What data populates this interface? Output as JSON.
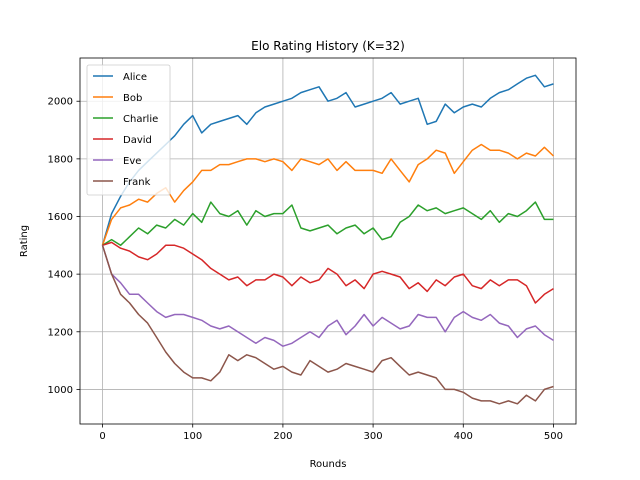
{
  "chart_data": {
    "type": "line",
    "title": "Elo Rating History (K=32)",
    "xlabel": "Rounds",
    "ylabel": "Rating",
    "xlim": [
      -25,
      525
    ],
    "ylim": [
      880,
      2150
    ],
    "xticks": [
      0,
      100,
      200,
      300,
      400,
      500
    ],
    "yticks": [
      1000,
      1200,
      1400,
      1600,
      1800,
      2000
    ],
    "grid": true,
    "legend": "top-left",
    "series": [
      {
        "name": "Alice",
        "color": "#1f77b4",
        "x": [
          0,
          10,
          20,
          30,
          40,
          50,
          60,
          70,
          80,
          90,
          100,
          110,
          120,
          130,
          140,
          150,
          160,
          170,
          180,
          190,
          200,
          210,
          220,
          230,
          240,
          250,
          260,
          270,
          280,
          290,
          300,
          310,
          320,
          330,
          340,
          350,
          360,
          370,
          380,
          390,
          400,
          410,
          420,
          430,
          440,
          450,
          460,
          470,
          480,
          490,
          500
        ],
        "y": [
          1500,
          1610,
          1670,
          1720,
          1760,
          1790,
          1820,
          1850,
          1880,
          1920,
          1950,
          1890,
          1920,
          1930,
          1940,
          1950,
          1920,
          1960,
          1980,
          1990,
          2000,
          2010,
          2030,
          2040,
          2050,
          2000,
          2010,
          2030,
          1980,
          1990,
          2000,
          2010,
          2030,
          1990,
          2000,
          2010,
          1920,
          1930,
          1990,
          1960,
          1980,
          1990,
          1980,
          2010,
          2030,
          2040,
          2060,
          2080,
          2090,
          2050,
          2060
        ]
      },
      {
        "name": "Bob",
        "color": "#ff7f0e",
        "x": [
          0,
          10,
          20,
          30,
          40,
          50,
          60,
          70,
          80,
          90,
          100,
          110,
          120,
          130,
          140,
          150,
          160,
          170,
          180,
          190,
          200,
          210,
          220,
          230,
          240,
          250,
          260,
          270,
          280,
          290,
          300,
          310,
          320,
          330,
          340,
          350,
          360,
          370,
          380,
          390,
          400,
          410,
          420,
          430,
          440,
          450,
          460,
          470,
          480,
          490,
          500
        ],
        "y": [
          1500,
          1590,
          1630,
          1640,
          1660,
          1650,
          1680,
          1700,
          1650,
          1690,
          1720,
          1760,
          1760,
          1780,
          1780,
          1790,
          1800,
          1800,
          1790,
          1800,
          1790,
          1760,
          1800,
          1790,
          1780,
          1800,
          1760,
          1790,
          1760,
          1760,
          1760,
          1750,
          1800,
          1760,
          1720,
          1780,
          1800,
          1830,
          1820,
          1750,
          1790,
          1830,
          1850,
          1830,
          1830,
          1820,
          1800,
          1820,
          1810,
          1840,
          1810
        ]
      },
      {
        "name": "Charlie",
        "color": "#2ca02c",
        "x": [
          0,
          10,
          20,
          30,
          40,
          50,
          60,
          70,
          80,
          90,
          100,
          110,
          120,
          130,
          140,
          150,
          160,
          170,
          180,
          190,
          200,
          210,
          220,
          230,
          240,
          250,
          260,
          270,
          280,
          290,
          300,
          310,
          320,
          330,
          340,
          350,
          360,
          370,
          380,
          390,
          400,
          410,
          420,
          430,
          440,
          450,
          460,
          470,
          480,
          490,
          500
        ],
        "y": [
          1500,
          1520,
          1500,
          1530,
          1560,
          1540,
          1570,
          1560,
          1590,
          1570,
          1610,
          1580,
          1650,
          1610,
          1600,
          1620,
          1570,
          1620,
          1600,
          1610,
          1610,
          1640,
          1560,
          1550,
          1560,
          1570,
          1540,
          1560,
          1570,
          1540,
          1560,
          1520,
          1530,
          1580,
          1600,
          1640,
          1620,
          1630,
          1610,
          1620,
          1630,
          1610,
          1590,
          1620,
          1580,
          1610,
          1600,
          1620,
          1650,
          1590,
          1590
        ]
      },
      {
        "name": "David",
        "color": "#d62728",
        "x": [
          0,
          10,
          20,
          30,
          40,
          50,
          60,
          70,
          80,
          90,
          100,
          110,
          120,
          130,
          140,
          150,
          160,
          170,
          180,
          190,
          200,
          210,
          220,
          230,
          240,
          250,
          260,
          270,
          280,
          290,
          300,
          310,
          320,
          330,
          340,
          350,
          360,
          370,
          380,
          390,
          400,
          410,
          420,
          430,
          440,
          450,
          460,
          470,
          480,
          490,
          500
        ],
        "y": [
          1500,
          1510,
          1490,
          1480,
          1460,
          1450,
          1470,
          1500,
          1500,
          1490,
          1470,
          1450,
          1420,
          1400,
          1380,
          1390,
          1360,
          1380,
          1380,
          1400,
          1390,
          1360,
          1390,
          1370,
          1380,
          1420,
          1400,
          1360,
          1380,
          1350,
          1400,
          1410,
          1400,
          1390,
          1350,
          1370,
          1340,
          1380,
          1360,
          1390,
          1400,
          1360,
          1350,
          1380,
          1360,
          1380,
          1380,
          1360,
          1300,
          1330,
          1350
        ]
      },
      {
        "name": "Eve",
        "color": "#9467bd",
        "x": [
          0,
          10,
          20,
          30,
          40,
          50,
          60,
          70,
          80,
          90,
          100,
          110,
          120,
          130,
          140,
          150,
          160,
          170,
          180,
          190,
          200,
          210,
          220,
          230,
          240,
          250,
          260,
          270,
          280,
          290,
          300,
          310,
          320,
          330,
          340,
          350,
          360,
          370,
          380,
          390,
          400,
          410,
          420,
          430,
          440,
          450,
          460,
          470,
          480,
          490,
          500
        ],
        "y": [
          1500,
          1400,
          1370,
          1330,
          1330,
          1300,
          1270,
          1250,
          1260,
          1260,
          1250,
          1240,
          1220,
          1210,
          1220,
          1200,
          1180,
          1160,
          1180,
          1170,
          1150,
          1160,
          1180,
          1200,
          1180,
          1220,
          1240,
          1190,
          1220,
          1260,
          1220,
          1250,
          1230,
          1210,
          1220,
          1260,
          1250,
          1250,
          1200,
          1250,
          1270,
          1250,
          1240,
          1260,
          1230,
          1220,
          1180,
          1210,
          1220,
          1190,
          1170
        ]
      },
      {
        "name": "Frank",
        "color": "#8c564b",
        "x": [
          0,
          10,
          20,
          30,
          40,
          50,
          60,
          70,
          80,
          90,
          100,
          110,
          120,
          130,
          140,
          150,
          160,
          170,
          180,
          190,
          200,
          210,
          220,
          230,
          240,
          250,
          260,
          270,
          280,
          290,
          300,
          310,
          320,
          330,
          340,
          350,
          360,
          370,
          380,
          390,
          400,
          410,
          420,
          430,
          440,
          450,
          460,
          470,
          480,
          490,
          500
        ],
        "y": [
          1500,
          1400,
          1330,
          1300,
          1260,
          1230,
          1180,
          1130,
          1090,
          1060,
          1040,
          1040,
          1030,
          1060,
          1120,
          1100,
          1120,
          1110,
          1090,
          1070,
          1080,
          1060,
          1050,
          1100,
          1080,
          1060,
          1070,
          1090,
          1080,
          1070,
          1060,
          1100,
          1110,
          1080,
          1050,
          1060,
          1050,
          1040,
          1000,
          1000,
          990,
          970,
          960,
          960,
          950,
          960,
          950,
          980,
          960,
          1000,
          1010
        ]
      }
    ]
  }
}
